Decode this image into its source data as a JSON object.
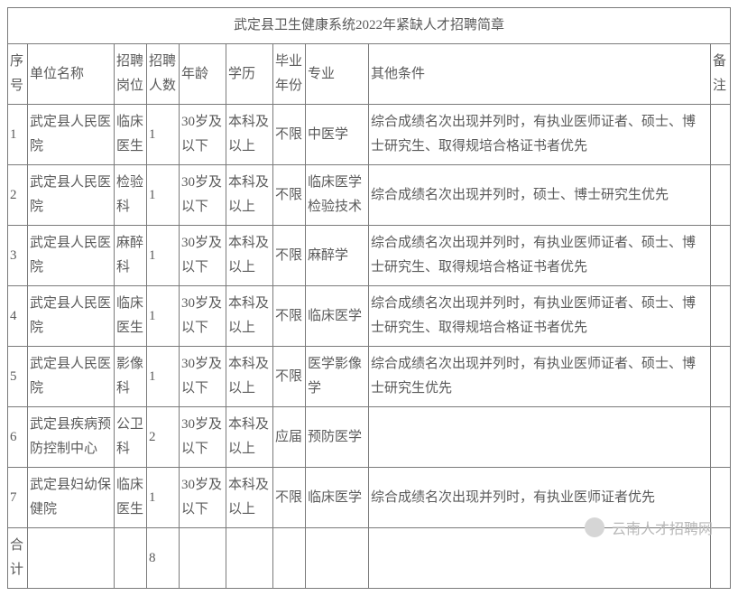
{
  "title": "武定县卫生健康系统2022年紧缺人才招聘简章",
  "headers": {
    "seq": "序号",
    "unit": "单位名称",
    "position": "招聘岗位",
    "count": "招聘人数",
    "age": "年龄",
    "edu": "学历",
    "grad": "毕业年份",
    "major": "专业",
    "other": "其他条件",
    "remark": "备注"
  },
  "rows": [
    {
      "seq": "1",
      "unit": "武定县人民医院",
      "position": "临床医生",
      "count": "1",
      "age": "30岁及以下",
      "edu": "本科及以上",
      "grad": "不限",
      "major": "中医学",
      "other": "综合成绩名次出现并列时，有执业医师证者、硕士、博士研究生、取得规培合格证书者优先",
      "remark": ""
    },
    {
      "seq": "2",
      "unit": "武定县人民医院",
      "position": "检验科",
      "count": "1",
      "age": "30岁及以下",
      "edu": "本科及以上",
      "grad": "不限",
      "major": "临床医学检验技术",
      "other": "综合成绩名次出现并列时，硕士、博士研究生优先",
      "remark": ""
    },
    {
      "seq": "3",
      "unit": "武定县人民医院",
      "position": "麻醉科",
      "count": "1",
      "age": "30岁及以下",
      "edu": "本科及以上",
      "grad": "不限",
      "major": "麻醉学",
      "other": "综合成绩名次出现并列时，有执业医师证者、硕士、博士研究生、取得规培合格证书者优先",
      "remark": ""
    },
    {
      "seq": "4",
      "unit": "武定县人民医院",
      "position": "临床医生",
      "count": "1",
      "age": "30岁及以下",
      "edu": "本科及以上",
      "grad": "不限",
      "major": "临床医学",
      "other": "综合成绩名次出现并列时，有执业医师证者、硕士、博士研究生、取得规培合格证书者优先",
      "remark": ""
    },
    {
      "seq": "5",
      "unit": "武定县人民医院",
      "position": "影像科",
      "count": "1",
      "age": "30岁及以下",
      "edu": "本科及以上",
      "grad": "不限",
      "major": "医学影像学",
      "other": "综合成绩名次出现并列时，有执业医师证者、硕士、博士研究生优先",
      "remark": ""
    },
    {
      "seq": "6",
      "unit": "武定县疾病预防控制中心",
      "position": "公卫科",
      "count": "2",
      "age": "30岁及以下",
      "edu": "本科及以上",
      "grad": "应届",
      "major": "预防医学",
      "other": "",
      "remark": ""
    },
    {
      "seq": "7",
      "unit": "武定县妇幼保健院",
      "position": "临床医生",
      "count": "1",
      "age": "30岁及以下",
      "edu": "本科及以上",
      "grad": "不限",
      "major": "临床医学",
      "other": "综合成绩名次出现并列时，有执业医师证者优先",
      "remark": ""
    }
  ],
  "total": {
    "label": "合计",
    "count": "8"
  },
  "watermark": "云南人才招聘网",
  "colors": {
    "text": "#5a5a5a",
    "border": "#7a7a7a",
    "background": "#ffffff",
    "watermark": "#b8b8b8"
  },
  "font_size_pt": 11
}
